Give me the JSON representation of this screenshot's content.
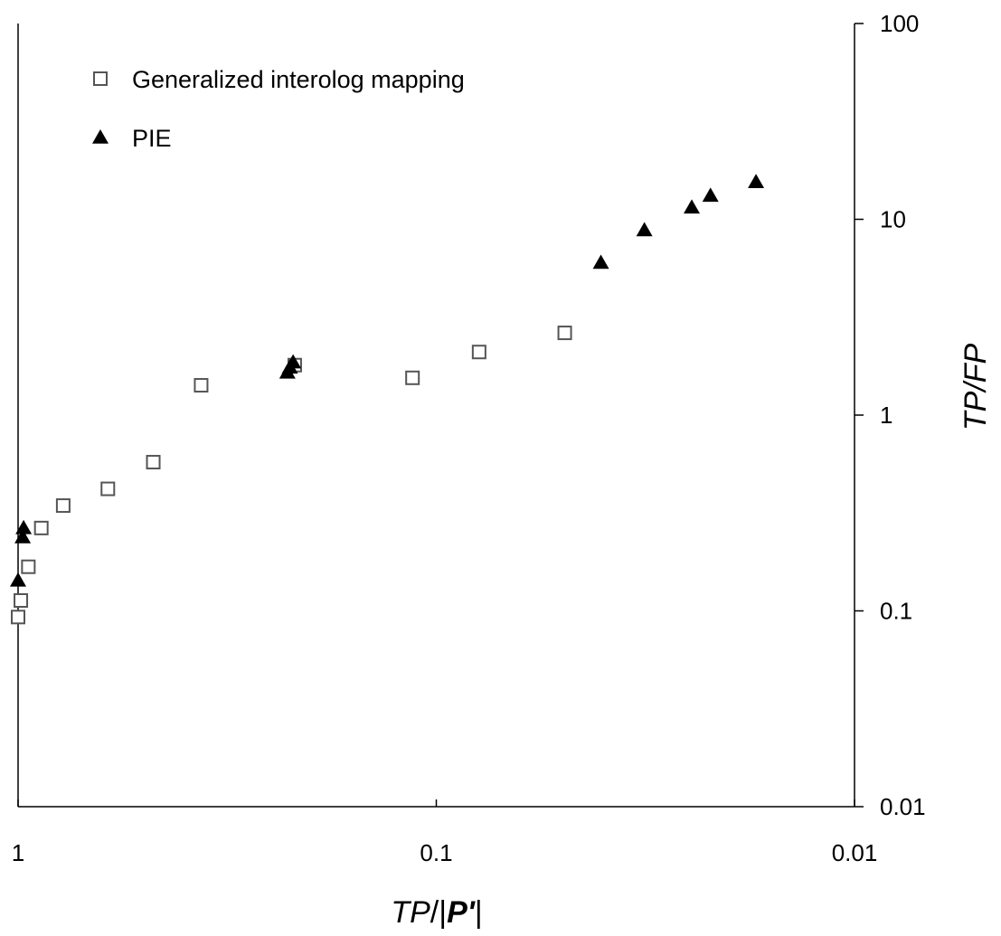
{
  "chart_data": {
    "type": "scatter",
    "title": "",
    "xlabel": {
      "italic_part": "TP",
      "middle": "/|",
      "bold_part": "P'",
      "end": "|"
    },
    "ylabel": "TP/FP",
    "x_scale": "log",
    "y_scale": "log",
    "x_reversed": true,
    "xlim": [
      1,
      0.01
    ],
    "ylim": [
      0.01,
      100
    ],
    "x_ticks": [
      1,
      0.1,
      0.01
    ],
    "x_tick_labels": [
      "1",
      "0.1",
      "0.01"
    ],
    "y_ticks": [
      0.01,
      0.1,
      1,
      10,
      100
    ],
    "y_tick_labels": [
      "0.01",
      "0.1",
      "1",
      "10",
      "100"
    ],
    "y_axis_side": "right",
    "grid": false,
    "legend_position": "top-left",
    "series": [
      {
        "name": "Generalized interolog mapping",
        "marker": "square-open",
        "color": "#555555",
        "points": [
          {
            "x": 1.0,
            "y": 0.093
          },
          {
            "x": 0.985,
            "y": 0.113
          },
          {
            "x": 0.945,
            "y": 0.168
          },
          {
            "x": 0.88,
            "y": 0.265
          },
          {
            "x": 0.78,
            "y": 0.345
          },
          {
            "x": 0.61,
            "y": 0.42
          },
          {
            "x": 0.475,
            "y": 0.575
          },
          {
            "x": 0.365,
            "y": 1.42
          },
          {
            "x": 0.218,
            "y": 1.8
          },
          {
            "x": 0.114,
            "y": 1.55
          },
          {
            "x": 0.079,
            "y": 2.1
          },
          {
            "x": 0.0493,
            "y": 2.63
          }
        ]
      },
      {
        "name": "PIE",
        "marker": "triangle-filled",
        "color": "#000000",
        "points": [
          {
            "x": 1.0,
            "y": 0.143
          },
          {
            "x": 0.975,
            "y": 0.238
          },
          {
            "x": 0.97,
            "y": 0.265
          },
          {
            "x": 0.227,
            "y": 1.65
          },
          {
            "x": 0.224,
            "y": 1.75
          },
          {
            "x": 0.22,
            "y": 1.86
          },
          {
            "x": 0.0404,
            "y": 6.0
          },
          {
            "x": 0.0318,
            "y": 8.8
          },
          {
            "x": 0.0245,
            "y": 11.5
          },
          {
            "x": 0.0221,
            "y": 13.2
          },
          {
            "x": 0.0172,
            "y": 15.5
          }
        ]
      }
    ]
  }
}
